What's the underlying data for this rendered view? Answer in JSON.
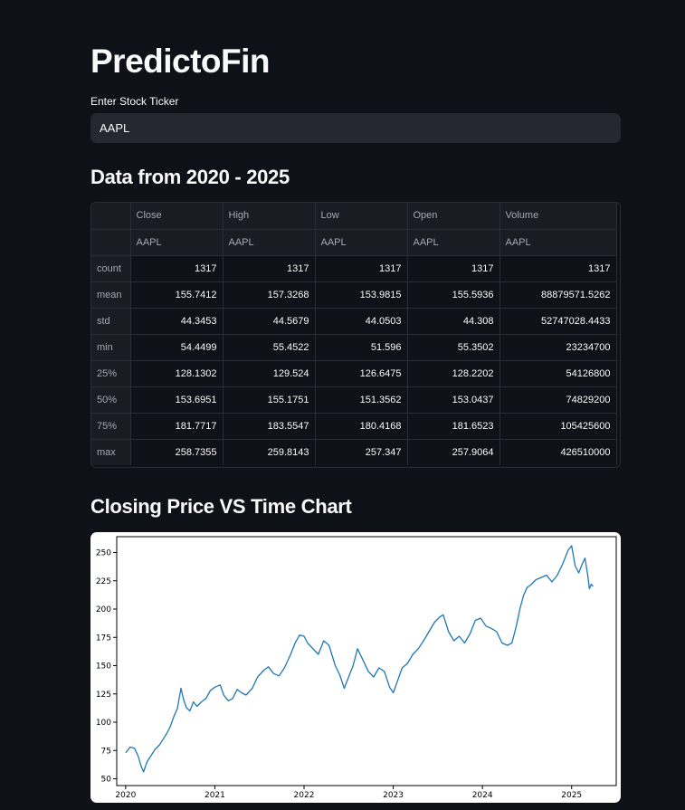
{
  "app": {
    "title": "PredictoFin"
  },
  "ticker_input": {
    "label": "Enter Stock Ticker",
    "value": "AAPL"
  },
  "data_section": {
    "heading": "Data from 2020 - 2025",
    "columns": [
      "Close",
      "High",
      "Low",
      "Open",
      "Volume"
    ],
    "subheader": [
      "AAPL",
      "AAPL",
      "AAPL",
      "AAPL",
      "AAPL"
    ],
    "rows": [
      {
        "label": "count",
        "values": [
          "1317",
          "1317",
          "1317",
          "1317",
          "1317"
        ]
      },
      {
        "label": "mean",
        "values": [
          "155.7412",
          "157.3268",
          "153.9815",
          "155.5936",
          "88879571.5262"
        ]
      },
      {
        "label": "std",
        "values": [
          "44.3453",
          "44.5679",
          "44.0503",
          "44.308",
          "52747028.4433"
        ]
      },
      {
        "label": "min",
        "values": [
          "54.4499",
          "55.4522",
          "51.596",
          "55.3502",
          "23234700"
        ]
      },
      {
        "label": "25%",
        "values": [
          "128.1302",
          "129.524",
          "126.6475",
          "128.2202",
          "54126800"
        ]
      },
      {
        "label": "50%",
        "values": [
          "153.6951",
          "155.1751",
          "151.3562",
          "153.0437",
          "74829200"
        ]
      },
      {
        "label": "75%",
        "values": [
          "181.7717",
          "183.5547",
          "180.4168",
          "181.6523",
          "105425600"
        ]
      },
      {
        "label": "max",
        "values": [
          "258.7355",
          "259.8143",
          "257.347",
          "257.9064",
          "426510000"
        ]
      }
    ]
  },
  "chart_section": {
    "heading": "Closing Price VS Time Chart"
  },
  "chart_data": {
    "type": "line",
    "title": "",
    "xlabel": "",
    "ylabel": "",
    "xlim": [
      2019.9,
      2025.5
    ],
    "ylim": [
      44,
      264
    ],
    "x_ticks": [
      "2020",
      "2021",
      "2022",
      "2023",
      "2024",
      "2025"
    ],
    "y_ticks": [
      50,
      75,
      100,
      125,
      150,
      175,
      200,
      225,
      250
    ],
    "grid": false,
    "color": "#1f77b4",
    "series": [
      {
        "x": [
          2020.0,
          2020.05,
          2020.1,
          2020.14,
          2020.17,
          2020.2,
          2020.24,
          2020.28,
          2020.33,
          2020.38,
          2020.42,
          2020.46,
          2020.5,
          2020.54,
          2020.58,
          2020.62,
          2020.65,
          2020.68,
          2020.72,
          2020.76,
          2020.8,
          2020.85,
          2020.9,
          2020.95,
          2021.0,
          2021.06,
          2021.1,
          2021.15,
          2021.2,
          2021.25,
          2021.3,
          2021.35,
          2021.42,
          2021.48,
          2021.55,
          2021.6,
          2021.66,
          2021.72,
          2021.78,
          2021.85,
          2021.9,
          2021.95,
          2022.0,
          2022.04,
          2022.1,
          2022.16,
          2022.22,
          2022.28,
          2022.35,
          2022.4,
          2022.45,
          2022.5,
          2022.55,
          2022.6,
          2022.66,
          2022.72,
          2022.78,
          2022.84,
          2022.9,
          2022.96,
          2023.0,
          2023.05,
          2023.1,
          2023.16,
          2023.22,
          2023.28,
          2023.34,
          2023.4,
          2023.46,
          2023.52,
          2023.56,
          2023.62,
          2023.68,
          2023.74,
          2023.8,
          2023.86,
          2023.92,
          2023.98,
          2024.04,
          2024.1,
          2024.16,
          2024.22,
          2024.28,
          2024.33,
          2024.38,
          2024.42,
          2024.46,
          2024.5,
          2024.55,
          2024.6,
          2024.66,
          2024.72,
          2024.78,
          2024.84,
          2024.9,
          2024.96,
          2025.0,
          2025.04,
          2025.08,
          2025.12,
          2025.15,
          2025.18,
          2025.2,
          2025.22,
          2025.24
        ],
        "y": [
          73,
          78,
          77,
          70,
          62,
          56,
          65,
          70,
          76,
          80,
          85,
          90,
          96,
          105,
          112,
          130,
          120,
          113,
          110,
          118,
          114,
          118,
          121,
          128,
          131,
          133,
          124,
          119,
          121,
          129,
          126,
          124,
          130,
          140,
          146,
          149,
          143,
          141,
          148,
          160,
          170,
          177,
          176,
          170,
          165,
          160,
          172,
          168,
          150,
          142,
          130,
          140,
          150,
          165,
          155,
          145,
          140,
          148,
          145,
          131,
          126,
          137,
          148,
          152,
          160,
          165,
          172,
          180,
          188,
          193,
          195,
          180,
          172,
          176,
          170,
          178,
          190,
          192,
          185,
          183,
          180,
          170,
          168,
          170,
          185,
          200,
          212,
          219,
          222,
          226,
          228,
          230,
          224,
          230,
          240,
          252,
          256,
          238,
          232,
          240,
          245,
          230,
          218,
          222,
          220
        ]
      }
    ]
  }
}
